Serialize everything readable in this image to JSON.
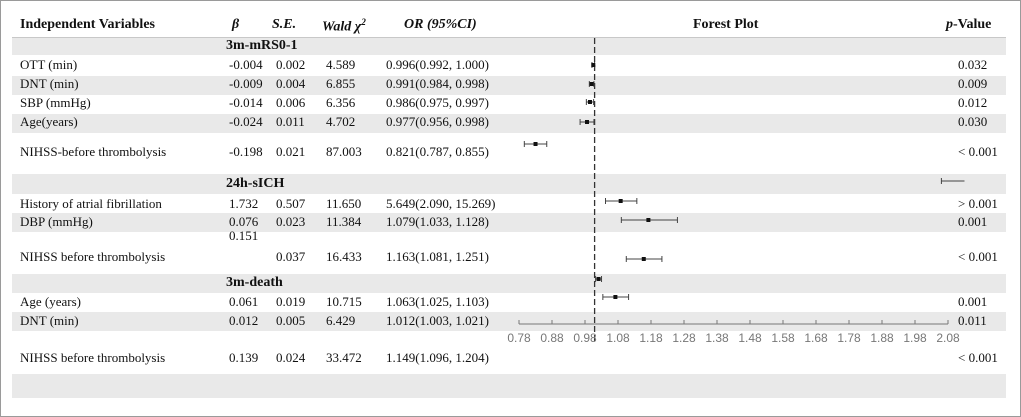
{
  "header": {
    "var": "Independent Variables",
    "beta": "β",
    "se": "S.E.",
    "wald": "Wald χ",
    "wald_sup": "2",
    "or": "OR (95%CI)",
    "plot": "Forest Plot",
    "p_italic": "p",
    "p_rest": "-Value"
  },
  "sections": [
    "3m-mRS0-1",
    "24h-sICH",
    "3m-death"
  ],
  "rows": [
    {
      "var": "OTT (min)",
      "beta": "-0.004",
      "se": "0.002",
      "wald": "4.589",
      "or": "0.996(0.992, 1.000)",
      "p": "0.032"
    },
    {
      "var": "DNT (min)",
      "beta": "-0.009",
      "se": "0.004",
      "wald": "6.855",
      "or": "0.991(0.984, 0.998)",
      "p": "0.009"
    },
    {
      "var": "SBP (mmHg)",
      "beta": "-0.014",
      "se": "0.006",
      "wald": "6.356",
      "or": "0.986(0.975, 0.997)",
      "p": "0.012"
    },
    {
      "var": "Age(years)",
      "beta": "-0.024",
      "se": "0.011",
      "wald": "4.702",
      "or": "0.977(0.956, 0.998)",
      "p": "0.030"
    },
    {
      "var": "NIHSS-before thrombolysis",
      "beta": "-0.198",
      "se": "0.021",
      "wald": "87.003",
      "or": "0.821(0.787, 0.855)",
      "p": "< 0.001"
    },
    {
      "var": "History of atrial  fibrillation",
      "beta": "1.732",
      "se": "0.507",
      "wald": "11.650",
      "or": "5.649(2.090, 15.269)",
      "p": "> 0.001"
    },
    {
      "var": "DBP (mmHg)",
      "beta": "0.076",
      "se": "0.023",
      "wald": "11.384",
      "or": "1.079(1.033, 1.128)",
      "p": "0.001"
    },
    {
      "var": "NIHSS before thrombolysis",
      "beta": "0.151",
      "se": "0.037",
      "wald": "16.433",
      "or": "1.163(1.081, 1.251)",
      "p": "< 0.001"
    },
    {
      "var": "Age (years)",
      "beta": "0.061",
      "se": "0.019",
      "wald": "10.715",
      "or": "1.063(1.025, 1.103)",
      "p": "0.001"
    },
    {
      "var": "DNT (min)",
      "beta": "0.012",
      "se": "0.005",
      "wald": "6.429",
      "or": "1.012(1.003, 1.021)",
      "p": "0.011"
    },
    {
      "var": "NIHSS before thrombolysis",
      "beta": "0.139",
      "se": "0.024",
      "wald": "33.472",
      "or": "1.149(1.096, 1.204)",
      "p": "< 0.001"
    }
  ],
  "chart_data": {
    "type": "forest",
    "reference_line": 1.0,
    "xlim": [
      0.78,
      2.08
    ],
    "xticks": [
      "0.78",
      "0.88",
      "0.98",
      "1.08",
      "1.18",
      "1.28",
      "1.38",
      "1.48",
      "1.58",
      "1.68",
      "1.78",
      "1.88",
      "1.98",
      "2.08"
    ],
    "points": [
      {
        "or": 0.996,
        "lower": 0.992,
        "upper": 1.0
      },
      {
        "or": 0.991,
        "lower": 0.984,
        "upper": 0.998
      },
      {
        "or": 0.986,
        "lower": 0.975,
        "upper": 0.997
      },
      {
        "or": 0.977,
        "lower": 0.956,
        "upper": 0.998
      },
      {
        "or": 0.821,
        "lower": 0.787,
        "upper": 0.855
      },
      {
        "or": 5.649,
        "lower": 2.09,
        "upper": 15.269
      },
      {
        "or": 1.079,
        "lower": 1.033,
        "upper": 1.128
      },
      {
        "or": 1.163,
        "lower": 1.081,
        "upper": 1.251
      },
      {
        "or": 1.063,
        "lower": 1.025,
        "upper": 1.103
      },
      {
        "or": 1.012,
        "lower": 1.003,
        "upper": 1.021
      },
      {
        "or": 1.149,
        "lower": 1.096,
        "upper": 1.204
      }
    ]
  }
}
